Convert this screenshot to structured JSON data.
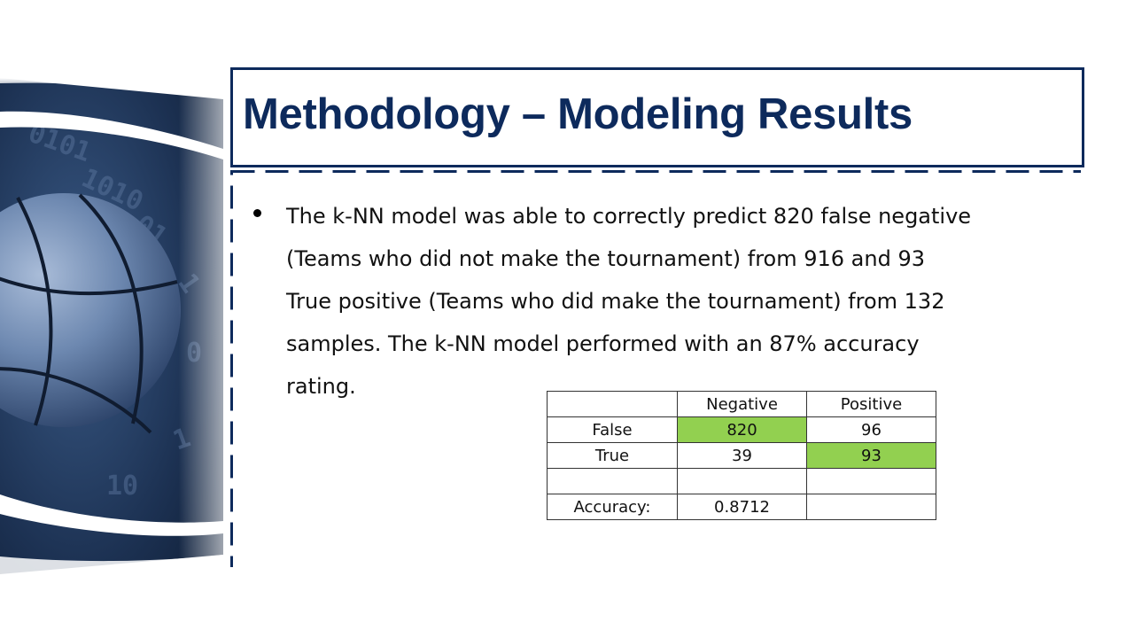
{
  "title": "Methodology – Modeling Results",
  "bullet": {
    "lines": [
      "The k-NN model was able to correctly predict 820 false negative",
      "(Teams who did not make the tournament) from 916 and 93",
      "True positive (Teams who did make the tournament) from 132",
      "samples. The k-NN model performed with an 87% accuracy",
      "rating."
    ]
  },
  "table": {
    "header": [
      "",
      "Negative",
      "Positive"
    ],
    "rows": [
      [
        "False",
        "820",
        "96"
      ],
      [
        "True",
        "39",
        "93"
      ],
      [
        "",
        "",
        ""
      ],
      [
        "Accuracy:",
        "0.8712",
        ""
      ]
    ]
  },
  "colors": {
    "title_navy": "#0d2a5c",
    "highlight_green": "#92d050"
  },
  "art": {
    "icon": "basketball-binary-art"
  }
}
